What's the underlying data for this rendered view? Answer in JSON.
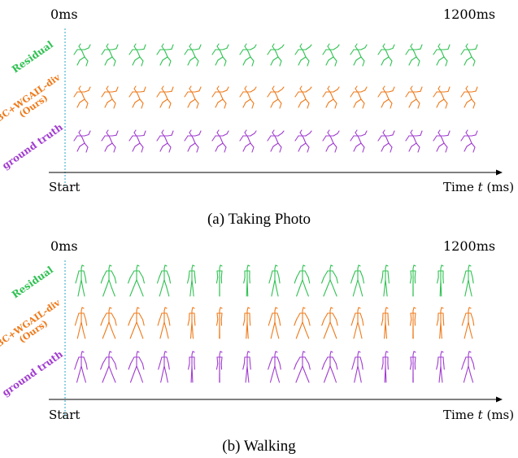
{
  "colors": {
    "residual": "#2fc152",
    "ours": "#ef7a1a",
    "gt": "#a13cd0",
    "start_line": "#2aa4c9"
  },
  "panels": [
    {
      "caption": "(a) Taking Photo",
      "time_start": "0ms",
      "time_end": "1200ms",
      "start_label": "Start",
      "axis_label_pre": "Time ",
      "axis_label_var": "t",
      "axis_label_post": " (ms)",
      "rows": [
        {
          "label": "Residual",
          "color_key": "residual"
        },
        {
          "label_line1": "BC+WGAIL-div",
          "label_line2": "(Ours)",
          "color_key": "ours"
        },
        {
          "label": "ground truth",
          "color_key": "gt"
        }
      ],
      "frames": 15,
      "pose": "crouch"
    },
    {
      "caption": "(b) Walking",
      "time_start": "0ms",
      "time_end": "1200ms",
      "start_label": "Start",
      "axis_label_pre": "Time ",
      "axis_label_var": "t",
      "axis_label_post": " (ms)",
      "rows": [
        {
          "label": "Residual",
          "color_key": "residual"
        },
        {
          "label_line1": "BC+WGAIL-div",
          "label_line2": "(Ours)",
          "color_key": "ours"
        },
        {
          "label": "ground truth",
          "color_key": "gt"
        }
      ],
      "frames": 15,
      "pose": "walk"
    }
  ]
}
